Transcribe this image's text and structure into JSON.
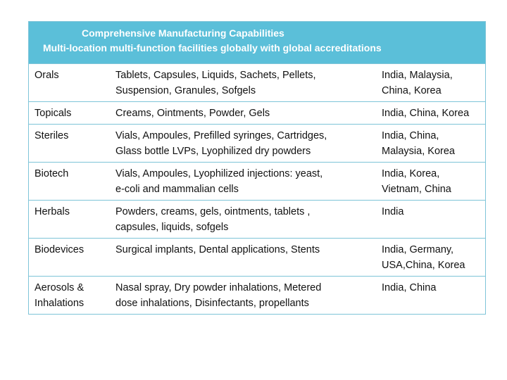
{
  "header": {
    "line1": "Comprehensive Manufacturing Capabilities",
    "line2": "Multi-location multi-function facilities globally with global accreditations"
  },
  "rows": [
    {
      "category": [
        "Orals"
      ],
      "products": [
        "Tablets, Capsules, Liquids, Sachets, Pellets,",
        "Suspension, Granules, Sofgels"
      ],
      "locations": [
        "India, Malaysia,",
        "China, Korea"
      ]
    },
    {
      "category": [
        "Topicals"
      ],
      "products": [
        "Creams, Ointments, Powder, Gels"
      ],
      "locations": [
        "India, China, Korea"
      ]
    },
    {
      "category": [
        "Steriles"
      ],
      "products": [
        "Vials, Ampoules, Prefilled syringes, Cartridges,",
        "Glass bottle LVPs, Lyophilized dry powders"
      ],
      "locations": [
        "India, China,",
        "Malaysia, Korea"
      ]
    },
    {
      "category": [
        "Biotech"
      ],
      "products": [
        "Vials, Ampoules, Lyophilized injections: yeast,",
        "e-coli and mammalian cells"
      ],
      "locations": [
        "India, Korea,",
        "Vietnam, China"
      ]
    },
    {
      "category": [
        "Herbals"
      ],
      "products": [
        "Powders, creams, gels, ointments, tablets ,",
        "capsules, liquids, sofgels"
      ],
      "locations": [
        "India"
      ]
    },
    {
      "category": [
        "Biodevices"
      ],
      "products": [
        "Surgical implants, Dental applications, Stents"
      ],
      "locations": [
        "India, Germany,",
        "USA,China, Korea"
      ]
    },
    {
      "category": [
        "Aerosols &",
        "Inhalations"
      ],
      "products": [
        "Nasal spray, Dry powder inhalations, Metered",
        "dose inhalations, Disinfectants, propellants"
      ],
      "locations": [
        "India, China"
      ]
    }
  ]
}
